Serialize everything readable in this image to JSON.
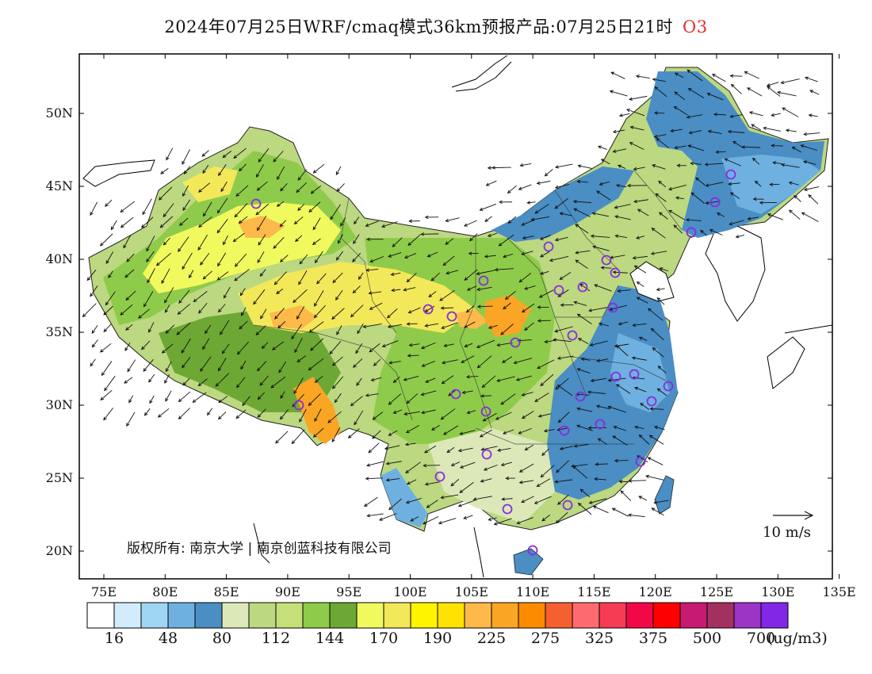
{
  "title": "2024年07月25日WRF/cmaq模式36km预报产品:07月25日21时",
  "species": "O3",
  "copyright": "版权所有: 南京大学 | 南京创蓝科技有限公司",
  "wind_scale_label": "10 m/s",
  "unit": "(ug/m3)",
  "lon_labels": [
    "75E",
    "80E",
    "85E",
    "90E",
    "95E",
    "100E",
    "105E",
    "110E",
    "115E",
    "120E",
    "125E",
    "130E",
    "135E"
  ],
  "lat_labels": [
    "50N",
    "45N",
    "40N",
    "35N",
    "30N",
    "25N",
    "20N"
  ],
  "legend": {
    "colors": [
      "#ffffff",
      "#d2ecfb",
      "#9fd6f4",
      "#6eb1e0",
      "#4a8ec4",
      "#dce8b8",
      "#bcd880",
      "#c5e078",
      "#8fcb4a",
      "#6da834",
      "#f0fa5e",
      "#f3e85a",
      "#fff400",
      "#ffe200",
      "#fdb94a",
      "#faa523",
      "#fb8c00",
      "#f46030",
      "#fc6b6d",
      "#f63b55",
      "#f20848",
      "#fd0000",
      "#c71a72",
      "#a3315f",
      "#9c34c6",
      "#8127e5"
    ],
    "labels": [
      "16",
      "48",
      "80",
      "112",
      "144",
      "170",
      "190",
      "225",
      "275",
      "325",
      "375",
      "500",
      "700"
    ]
  },
  "city_marker_color": "#8a2be2"
}
